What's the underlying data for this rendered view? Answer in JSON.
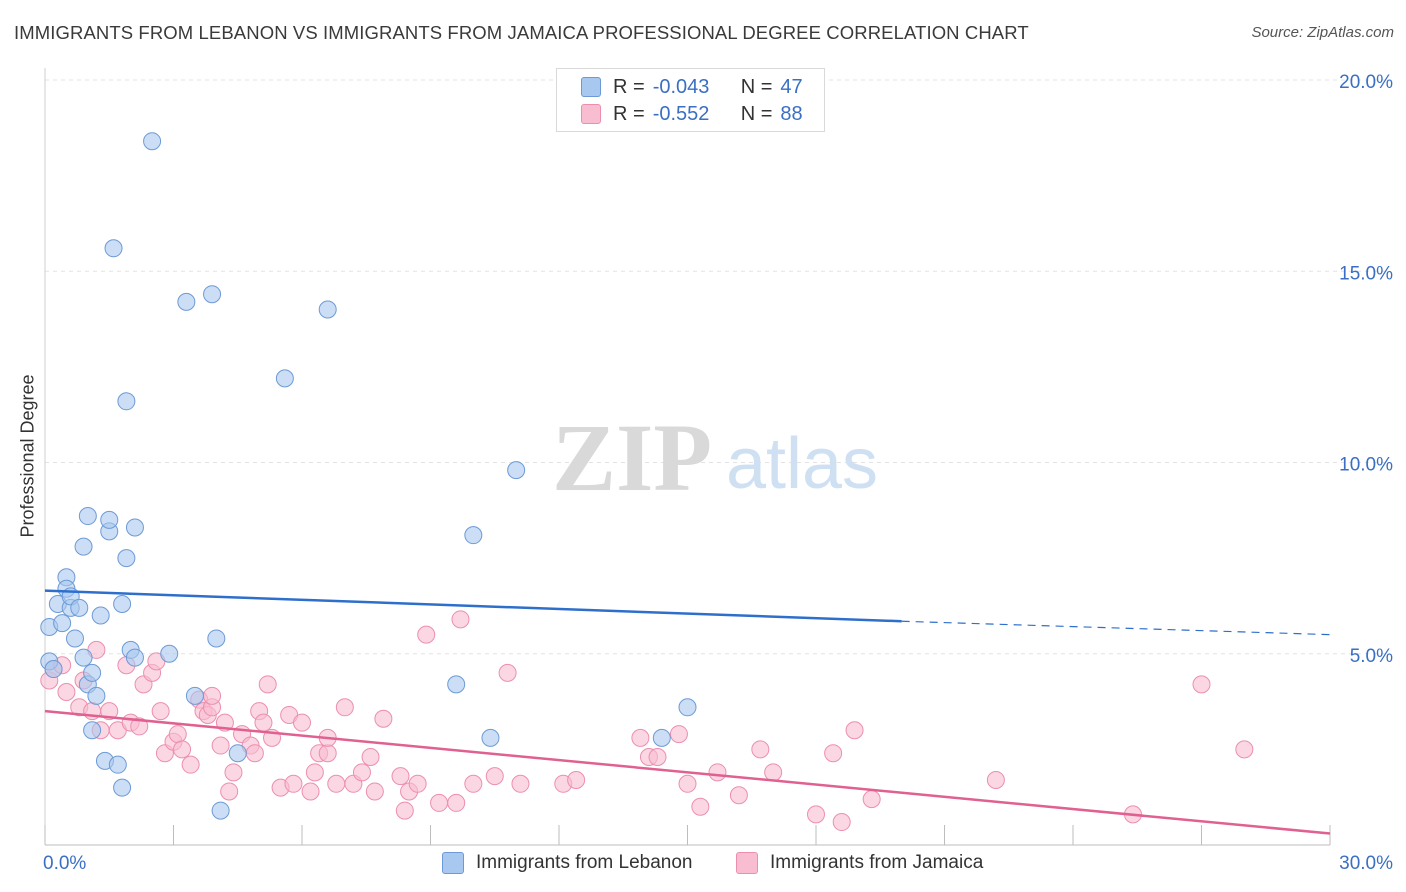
{
  "title": "IMMIGRANTS FROM LEBANON VS IMMIGRANTS FROM JAMAICA PROFESSIONAL DEGREE CORRELATION CHART",
  "source": "Source: ZipAtlas.com",
  "watermark": {
    "zip": "ZIP",
    "atlas": "atlas"
  },
  "legend": {
    "r_label": "R =",
    "n_label": "N =",
    "rows": [
      {
        "r": "-0.043",
        "n": "47"
      },
      {
        "r": "-0.552",
        "n": "88"
      }
    ]
  },
  "colors": {
    "lebanon_fill": "#a9c8ef",
    "lebanon_stroke": "#6d9ad6",
    "lebanon_line": "#2f6fcc",
    "jamaica_fill": "#f8bdd0",
    "jamaica_stroke": "#ec8fae",
    "jamaica_line": "#e0608f",
    "grid": "#e3e3e3",
    "axis_tick": "#3a6fc4"
  },
  "chart_data": {
    "type": "scatter",
    "title": "IMMIGRANTS FROM LEBANON VS IMMIGRANTS FROM JAMAICA PROFESSIONAL DEGREE CORRELATION CHART",
    "xlabel": "",
    "ylabel": "Professional Degree",
    "xlim": [
      0,
      30
    ],
    "ylim": [
      0,
      20
    ],
    "x_ticks": [
      "0.0%",
      "30.0%"
    ],
    "y_ticks": [
      {
        "value": 5,
        "label": "5.0%"
      },
      {
        "value": 10,
        "label": "10.0%"
      },
      {
        "value": 15,
        "label": "15.0%"
      },
      {
        "value": 20,
        "label": "20.0%"
      }
    ],
    "grid": true,
    "legend_position": "top-center",
    "series": [
      {
        "name": "Immigrants from Lebanon",
        "trend": {
          "x": [
            0,
            20
          ],
          "y": [
            6.65,
            5.85
          ],
          "dashed_to": [
            30,
            5.5
          ]
        },
        "points": [
          [
            0.1,
            4.8
          ],
          [
            0.1,
            5.7
          ],
          [
            0.2,
            4.6
          ],
          [
            0.3,
            6.3
          ],
          [
            0.4,
            5.8
          ],
          [
            0.5,
            7.0
          ],
          [
            0.5,
            6.7
          ],
          [
            0.6,
            6.2
          ],
          [
            0.6,
            6.5
          ],
          [
            0.7,
            5.4
          ],
          [
            0.8,
            6.2
          ],
          [
            0.9,
            4.9
          ],
          [
            0.9,
            7.8
          ],
          [
            1.0,
            4.2
          ],
          [
            1.0,
            8.6
          ],
          [
            1.1,
            4.5
          ],
          [
            1.1,
            3.0
          ],
          [
            1.2,
            3.9
          ],
          [
            1.3,
            6.0
          ],
          [
            1.4,
            2.2
          ],
          [
            1.5,
            8.2
          ],
          [
            1.5,
            8.5
          ],
          [
            1.6,
            15.6
          ],
          [
            1.7,
            2.1
          ],
          [
            1.8,
            1.5
          ],
          [
            1.8,
            6.3
          ],
          [
            1.9,
            11.6
          ],
          [
            1.9,
            7.5
          ],
          [
            2.0,
            5.1
          ],
          [
            2.1,
            4.9
          ],
          [
            2.1,
            8.3
          ],
          [
            2.5,
            18.4
          ],
          [
            2.9,
            5.0
          ],
          [
            3.3,
            14.2
          ],
          [
            3.5,
            3.9
          ],
          [
            3.9,
            14.4
          ],
          [
            4.0,
            5.4
          ],
          [
            4.1,
            0.9
          ],
          [
            4.5,
            2.4
          ],
          [
            5.6,
            12.2
          ],
          [
            6.6,
            14.0
          ],
          [
            9.6,
            4.2
          ],
          [
            10.0,
            8.1
          ],
          [
            10.4,
            2.8
          ],
          [
            11.0,
            9.8
          ],
          [
            14.4,
            2.8
          ],
          [
            15.0,
            3.6
          ]
        ]
      },
      {
        "name": "Immigrants from Jamaica",
        "trend": {
          "x": [
            0,
            30
          ],
          "y": [
            3.5,
            0.3
          ]
        },
        "points": [
          [
            0.1,
            4.3
          ],
          [
            0.2,
            4.6
          ],
          [
            0.4,
            4.7
          ],
          [
            0.5,
            4.0
          ],
          [
            0.8,
            3.6
          ],
          [
            0.9,
            4.3
          ],
          [
            1.1,
            3.5
          ],
          [
            1.2,
            5.1
          ],
          [
            1.3,
            3.0
          ],
          [
            1.5,
            3.5
          ],
          [
            1.7,
            3.0
          ],
          [
            1.9,
            4.7
          ],
          [
            2.0,
            3.2
          ],
          [
            2.2,
            3.1
          ],
          [
            2.3,
            4.2
          ],
          [
            2.5,
            4.5
          ],
          [
            2.6,
            4.8
          ],
          [
            2.7,
            3.5
          ],
          [
            2.8,
            2.4
          ],
          [
            3.0,
            2.7
          ],
          [
            3.1,
            2.9
          ],
          [
            3.2,
            2.5
          ],
          [
            3.4,
            2.1
          ],
          [
            3.6,
            3.8
          ],
          [
            3.7,
            3.5
          ],
          [
            3.8,
            3.4
          ],
          [
            3.9,
            3.6
          ],
          [
            3.9,
            3.9
          ],
          [
            4.1,
            2.6
          ],
          [
            4.2,
            3.2
          ],
          [
            4.3,
            1.4
          ],
          [
            4.4,
            1.9
          ],
          [
            4.6,
            2.9
          ],
          [
            4.8,
            2.6
          ],
          [
            4.9,
            2.4
          ],
          [
            5.0,
            3.5
          ],
          [
            5.1,
            3.2
          ],
          [
            5.2,
            4.2
          ],
          [
            5.3,
            2.8
          ],
          [
            5.5,
            1.5
          ],
          [
            5.7,
            3.4
          ],
          [
            5.8,
            1.6
          ],
          [
            6.0,
            3.2
          ],
          [
            6.2,
            1.4
          ],
          [
            6.3,
            1.9
          ],
          [
            6.4,
            2.4
          ],
          [
            6.6,
            2.4
          ],
          [
            6.6,
            2.8
          ],
          [
            6.8,
            1.6
          ],
          [
            7.0,
            3.6
          ],
          [
            7.2,
            1.6
          ],
          [
            7.4,
            1.9
          ],
          [
            7.6,
            2.3
          ],
          [
            7.7,
            1.4
          ],
          [
            7.9,
            3.3
          ],
          [
            8.3,
            1.8
          ],
          [
            8.4,
            0.9
          ],
          [
            8.5,
            1.4
          ],
          [
            8.7,
            1.6
          ],
          [
            8.9,
            5.5
          ],
          [
            9.2,
            1.1
          ],
          [
            9.6,
            1.1
          ],
          [
            9.7,
            5.9
          ],
          [
            10.0,
            1.6
          ],
          [
            10.5,
            1.8
          ],
          [
            10.8,
            4.5
          ],
          [
            11.1,
            1.6
          ],
          [
            12.1,
            1.6
          ],
          [
            12.4,
            1.7
          ],
          [
            13.9,
            2.8
          ],
          [
            14.1,
            2.3
          ],
          [
            14.3,
            2.3
          ],
          [
            14.8,
            2.9
          ],
          [
            15.0,
            1.6
          ],
          [
            15.3,
            1.0
          ],
          [
            15.7,
            1.9
          ],
          [
            16.2,
            1.3
          ],
          [
            16.7,
            2.5
          ],
          [
            17.0,
            1.9
          ],
          [
            18.0,
            0.8
          ],
          [
            18.4,
            2.4
          ],
          [
            18.6,
            0.6
          ],
          [
            18.9,
            3.0
          ],
          [
            19.3,
            1.2
          ],
          [
            22.2,
            1.7
          ],
          [
            25.4,
            0.8
          ],
          [
            27.0,
            4.2
          ],
          [
            28.0,
            2.5
          ]
        ]
      }
    ]
  }
}
